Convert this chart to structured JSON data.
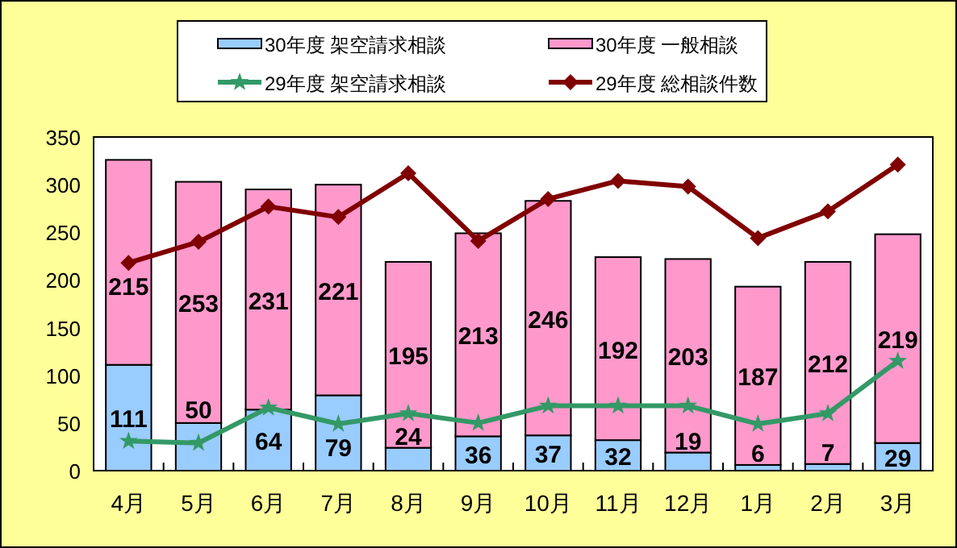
{
  "chart_data": {
    "type": "bar",
    "stacked": true,
    "categories": [
      "4月",
      "5月",
      "6月",
      "7月",
      "8月",
      "9月",
      "10月",
      "11月",
      "12月",
      "1月",
      "2月",
      "3月"
    ],
    "series": [
      {
        "name": "30年度 架空請求相談",
        "color": "#99ccff",
        "values": [
          111,
          50,
          64,
          79,
          24,
          36,
          37,
          32,
          19,
          6,
          7,
          29
        ],
        "value_labels": [
          "111",
          "50",
          "64",
          "79",
          "24",
          "36",
          "37",
          "32",
          "19",
          "6",
          "7",
          "29"
        ]
      },
      {
        "name": "30年度 一般相談",
        "color": "#ff99cc",
        "values": [
          215,
          253,
          231,
          221,
          195,
          213,
          246,
          192,
          203,
          187,
          212,
          219
        ],
        "value_labels": [
          "215",
          "253",
          "231",
          "221",
          "195",
          "213",
          "246",
          "192",
          "203",
          "187",
          "212",
          "219"
        ]
      },
      {
        "name": "29年度 架空請求相談",
        "type": "line",
        "color": "#339966",
        "marker": "star",
        "values": [
          31,
          29,
          66,
          49,
          60,
          50,
          68,
          68,
          68,
          49,
          60,
          115
        ]
      },
      {
        "name": "29年度 総相談件数",
        "type": "line",
        "color": "#800000",
        "marker": "diamond",
        "values": [
          218,
          240,
          277,
          266,
          312,
          241,
          285,
          304,
          298,
          244,
          272,
          321
        ]
      }
    ],
    "ylim": [
      0,
      350
    ],
    "yticks": [
      0,
      50,
      100,
      150,
      200,
      250,
      300,
      350
    ],
    "grid": false,
    "legend": "top"
  }
}
